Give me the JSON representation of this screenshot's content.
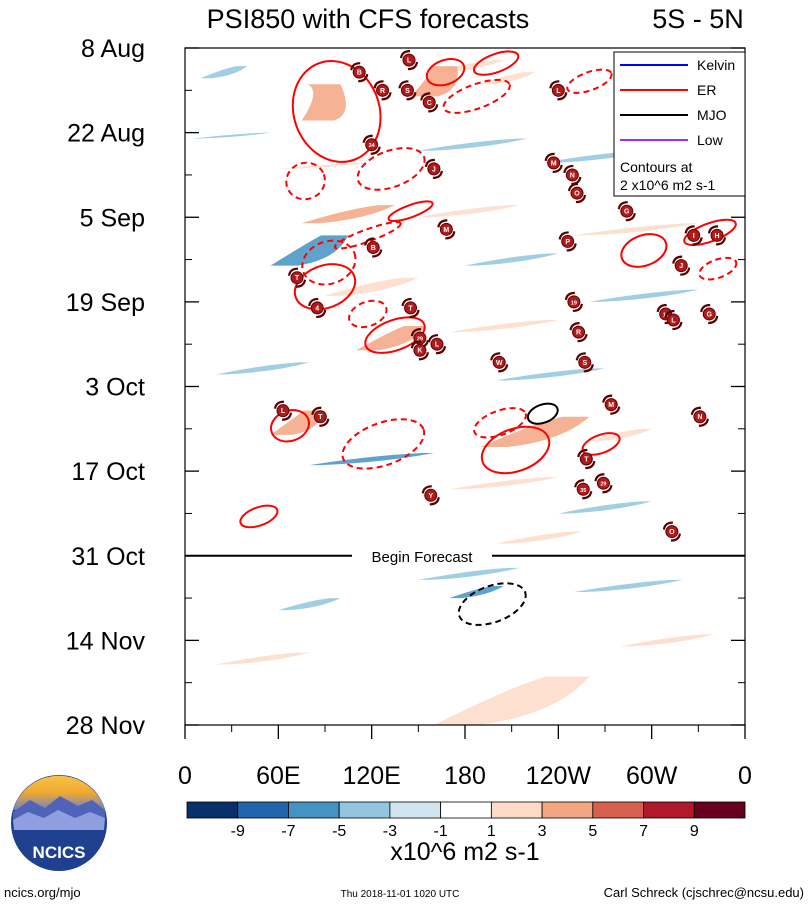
{
  "chart_data": {
    "type": "heatmap",
    "title": "PSI850 with CFS forecasts",
    "region": "5S - 5N",
    "xlabel": "",
    "ylabel": "",
    "x_ticks": [
      {
        "label": "0",
        "lon": 0
      },
      {
        "label": "60E",
        "lon": 60
      },
      {
        "label": "120E",
        "lon": 120
      },
      {
        "label": "180",
        "lon": 180
      },
      {
        "label": "120W",
        "lon": 240
      },
      {
        "label": "60W",
        "lon": 300
      },
      {
        "label": "0",
        "lon": 360
      }
    ],
    "xlim": [
      0,
      360
    ],
    "y_ticks": [
      {
        "label": "8 Aug",
        "day": 0
      },
      {
        "label": "22 Aug",
        "day": 14
      },
      {
        "label": "5 Sep",
        "day": 28
      },
      {
        "label": "19 Sep",
        "day": 42
      },
      {
        "label": "3 Oct",
        "day": 56
      },
      {
        "label": "17 Oct",
        "day": 70
      },
      {
        "label": "31 Oct",
        "day": 84
      },
      {
        "label": "14 Nov",
        "day": 98
      },
      {
        "label": "28 Nov",
        "day": 112
      }
    ],
    "ylim_days": [
      0,
      112
    ],
    "forecast_start_day": 84,
    "forecast_label": "Begin Forecast",
    "colorbar": {
      "label": "x10^6 m2 s-1",
      "tick_labels": [
        "-9",
        "-7",
        "-5",
        "-3",
        "-1",
        "1",
        "3",
        "5",
        "7",
        "9"
      ],
      "colors": [
        "#08306b",
        "#2166ac",
        "#4393c3",
        "#92c5de",
        "#d1e5f0",
        "#ffffff",
        "#fddbc7",
        "#f4a582",
        "#d6604d",
        "#b2182b",
        "#67001f"
      ]
    },
    "legend": {
      "position": "top-right",
      "entries": [
        {
          "name": "Kelvin",
          "color": "#0000ff"
        },
        {
          "name": "ER",
          "color": "#ff0000"
        },
        {
          "name": "MJO",
          "color": "#000000"
        },
        {
          "name": "Low",
          "color": "#9b30ff"
        }
      ],
      "note_line1": "Contours at",
      "note_line2": "2 x10^6 m2 s-1"
    },
    "anomaly_bands": [
      {
        "lon": [
          160,
          205
        ],
        "day": [
          2,
          4
        ],
        "value": 2
      },
      {
        "lon": [
          10,
          40
        ],
        "day": [
          3,
          5
        ],
        "value": -2
      },
      {
        "lon": [
          75,
          100
        ],
        "day": [
          6,
          12
        ],
        "value": 4
      },
      {
        "lon": [
          145,
          175
        ],
        "day": [
          3,
          8
        ],
        "value": 4
      },
      {
        "lon": [
          190,
          225
        ],
        "day": [
          4,
          6
        ],
        "value": 2
      },
      {
        "lon": [
          5,
          55
        ],
        "day": [
          14,
          15
        ],
        "value": -2
      },
      {
        "lon": [
          150,
          220
        ],
        "day": [
          15,
          17
        ],
        "value": -2
      },
      {
        "lon": [
          60,
          120
        ],
        "day": [
          19,
          20
        ],
        "value": 2
      },
      {
        "lon": [
          230,
          300
        ],
        "day": [
          17,
          19
        ],
        "value": -2
      },
      {
        "lon": [
          75,
          135
        ],
        "day": [
          26,
          29
        ],
        "value": 4
      },
      {
        "lon": [
          150,
          215
        ],
        "day": [
          26,
          28
        ],
        "value": 2
      },
      {
        "lon": [
          250,
          330
        ],
        "day": [
          29,
          31
        ],
        "value": 2
      },
      {
        "lon": [
          55,
          105
        ],
        "day": [
          31,
          36
        ],
        "value": -4
      },
      {
        "lon": [
          180,
          240
        ],
        "day": [
          34,
          36
        ],
        "value": -2
      },
      {
        "lon": [
          90,
          150
        ],
        "day": [
          38,
          41
        ],
        "value": 2
      },
      {
        "lon": [
          260,
          330
        ],
        "day": [
          40,
          42
        ],
        "value": -2
      },
      {
        "lon": [
          110,
          155
        ],
        "day": [
          46,
          50
        ],
        "value": 4
      },
      {
        "lon": [
          170,
          240
        ],
        "day": [
          45,
          47
        ],
        "value": 2
      },
      {
        "lon": [
          20,
          80
        ],
        "day": [
          52,
          54
        ],
        "value": -2
      },
      {
        "lon": [
          200,
          270
        ],
        "day": [
          53,
          55
        ],
        "value": -2
      },
      {
        "lon": [
          55,
          90
        ],
        "day": [
          60,
          64
        ],
        "value": 4
      },
      {
        "lon": [
          190,
          260
        ],
        "day": [
          61,
          66
        ],
        "value": 4
      },
      {
        "lon": [
          260,
          300
        ],
        "day": [
          63,
          65
        ],
        "value": 2
      },
      {
        "lon": [
          80,
          160
        ],
        "day": [
          67,
          69
        ],
        "value": -4
      },
      {
        "lon": [
          170,
          240
        ],
        "day": [
          71,
          73
        ],
        "value": 2
      },
      {
        "lon": [
          240,
          300
        ],
        "day": [
          75,
          77
        ],
        "value": -2
      },
      {
        "lon": [
          200,
          255
        ],
        "day": [
          80,
          82
        ],
        "value": 2
      },
      {
        "lon": [
          150,
          215
        ],
        "day": [
          86,
          88
        ],
        "value": -2
      },
      {
        "lon": [
          170,
          205
        ],
        "day": [
          89,
          91
        ],
        "value": -4
      },
      {
        "lon": [
          60,
          100
        ],
        "day": [
          91,
          93
        ],
        "value": -2
      },
      {
        "lon": [
          250,
          320
        ],
        "day": [
          88,
          90
        ],
        "value": -2
      },
      {
        "lon": [
          160,
          260
        ],
        "day": [
          104,
          112
        ],
        "value": 2
      },
      {
        "lon": [
          20,
          80
        ],
        "day": [
          100,
          102
        ],
        "value": 2
      },
      {
        "lon": [
          280,
          340
        ],
        "day": [
          97,
          99
        ],
        "value": 2
      }
    ],
    "er_contours": [
      {
        "lon": [
          70,
          125
        ],
        "day": [
          2,
          19
        ],
        "style": "solid"
      },
      {
        "lon": [
          155,
          180
        ],
        "day": [
          2,
          6
        ],
        "style": "solid"
      },
      {
        "lon": [
          185,
          215
        ],
        "day": [
          1,
          4
        ],
        "style": "solid"
      },
      {
        "lon": [
          165,
          210
        ],
        "day": [
          6,
          10
        ],
        "style": "dashed"
      },
      {
        "lon": [
          245,
          275
        ],
        "day": [
          4,
          7
        ],
        "style": "dashed"
      },
      {
        "lon": [
          65,
          90
        ],
        "day": [
          19,
          25
        ],
        "style": "dashed"
      },
      {
        "lon": [
          110,
          155
        ],
        "day": [
          17,
          23
        ],
        "style": "dashed"
      },
      {
        "lon": [
          75,
          110
        ],
        "day": [
          32,
          39
        ],
        "style": "dashed"
      },
      {
        "lon": [
          95,
          140
        ],
        "day": [
          30,
          32
        ],
        "style": "dashed"
      },
      {
        "lon": [
          70,
          110
        ],
        "day": [
          36,
          43
        ],
        "style": "solid"
      },
      {
        "lon": [
          130,
          160
        ],
        "day": [
          26,
          28
        ],
        "style": "solid"
      },
      {
        "lon": [
          105,
          130
        ],
        "day": [
          42,
          46
        ],
        "style": "dashed"
      },
      {
        "lon": [
          115,
          155
        ],
        "day": [
          45,
          50
        ],
        "style": "solid"
      },
      {
        "lon": [
          280,
          310
        ],
        "day": [
          31,
          36
        ],
        "style": "solid"
      },
      {
        "lon": [
          330,
          355
        ],
        "day": [
          35,
          38
        ],
        "style": "dashed"
      },
      {
        "lon": [
          320,
          355
        ],
        "day": [
          29,
          32
        ],
        "style": "solid"
      },
      {
        "lon": [
          55,
          80
        ],
        "day": [
          60,
          65
        ],
        "style": "solid"
      },
      {
        "lon": [
          100,
          155
        ],
        "day": [
          62,
          69
        ],
        "style": "dashed"
      },
      {
        "lon": [
          185,
          220
        ],
        "day": [
          60,
          64
        ],
        "style": "dashed"
      },
      {
        "lon": [
          190,
          235
        ],
        "day": [
          63,
          70
        ],
        "style": "solid"
      },
      {
        "lon": [
          255,
          280
        ],
        "day": [
          64,
          67
        ],
        "style": "solid"
      },
      {
        "lon": [
          35,
          60
        ],
        "day": [
          76,
          79
        ],
        "style": "solid"
      }
    ],
    "mjo_contours": [
      {
        "lon": [
          220,
          240
        ],
        "day": [
          59,
          62
        ],
        "style": "solid"
      },
      {
        "lon": [
          175,
          220
        ],
        "day": [
          89,
          95
        ],
        "style": "dashed"
      }
    ],
    "storms": [
      {
        "code": "L",
        "lon": 144,
        "day": 2
      },
      {
        "code": "B",
        "lon": 112,
        "day": 4
      },
      {
        "code": "R",
        "lon": 127,
        "day": 7
      },
      {
        "code": "S",
        "lon": 143,
        "day": 7
      },
      {
        "code": "C",
        "lon": 157,
        "day": 9
      },
      {
        "code": "L",
        "lon": 240,
        "day": 7
      },
      {
        "code": "24",
        "lon": 120,
        "day": 16
      },
      {
        "code": "J",
        "lon": 160,
        "day": 20
      },
      {
        "code": "M",
        "lon": 237,
        "day": 19
      },
      {
        "code": "N",
        "lon": 249,
        "day": 21
      },
      {
        "code": "O",
        "lon": 252,
        "day": 24
      },
      {
        "code": "G",
        "lon": 284,
        "day": 27
      },
      {
        "code": "M",
        "lon": 168,
        "day": 30
      },
      {
        "code": "B",
        "lon": 121,
        "day": 33
      },
      {
        "code": "P",
        "lon": 246,
        "day": 32
      },
      {
        "code": "I",
        "lon": 327,
        "day": 31
      },
      {
        "code": "H",
        "lon": 342,
        "day": 31
      },
      {
        "code": "J",
        "lon": 319,
        "day": 36
      },
      {
        "code": "T",
        "lon": 72,
        "day": 38
      },
      {
        "code": "4",
        "lon": 85,
        "day": 43
      },
      {
        "code": "T",
        "lon": 145,
        "day": 43
      },
      {
        "code": "19",
        "lon": 250,
        "day": 42
      },
      {
        "code": "11",
        "lon": 309,
        "day": 44
      },
      {
        "code": "L",
        "lon": 314,
        "day": 45
      },
      {
        "code": "G",
        "lon": 337,
        "day": 44
      },
      {
        "code": "29",
        "lon": 151,
        "day": 48
      },
      {
        "code": "K",
        "lon": 151,
        "day": 50
      },
      {
        "code": "L",
        "lon": 162,
        "day": 49
      },
      {
        "code": "R",
        "lon": 253,
        "day": 47
      },
      {
        "code": "W",
        "lon": 202,
        "day": 52
      },
      {
        "code": "S",
        "lon": 257,
        "day": 52
      },
      {
        "code": "L",
        "lon": 63,
        "day": 60
      },
      {
        "code": "T",
        "lon": 87,
        "day": 61
      },
      {
        "code": "M",
        "lon": 274,
        "day": 59
      },
      {
        "code": "N",
        "lon": 331,
        "day": 61
      },
      {
        "code": "T",
        "lon": 258,
        "day": 68
      },
      {
        "code": "35",
        "lon": 256,
        "day": 73
      },
      {
        "code": "29",
        "lon": 269,
        "day": 72
      },
      {
        "code": "Y",
        "lon": 158,
        "day": 74
      },
      {
        "code": "O",
        "lon": 313,
        "day": 80
      }
    ]
  },
  "footer": {
    "site": "ncics.org/mjo",
    "timestamp": "Thu 2018-11-01 1020 UTC",
    "author": "Carl Schreck (cjschrec@ncsu.edu)",
    "logo_text": "NCICS"
  }
}
